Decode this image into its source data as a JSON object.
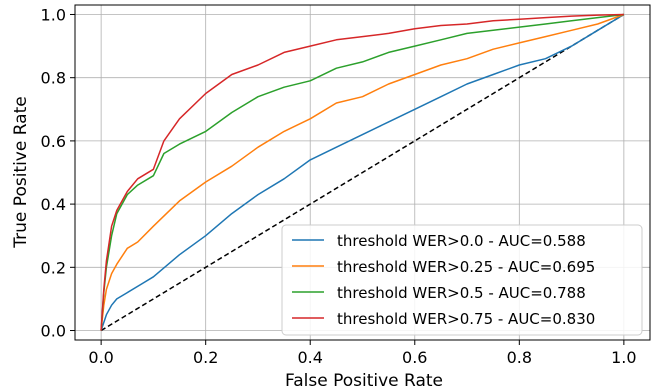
{
  "chart_data": {
    "type": "line",
    "xlabel": "False Positive Rate",
    "ylabel": "True Positive Rate",
    "xlim": [
      -0.05,
      1.05
    ],
    "ylim": [
      -0.03,
      1.03
    ],
    "xticks": [
      "0.0",
      "0.2",
      "0.4",
      "0.6",
      "0.8",
      "1.0"
    ],
    "yticks": [
      "0.0",
      "0.2",
      "0.4",
      "0.6",
      "0.8",
      "1.0"
    ],
    "grid": true,
    "legend_position": "lower-right",
    "reference_line": {
      "x": [
        0,
        1
      ],
      "y": [
        0,
        1
      ],
      "style": "dashed",
      "color": "#000000"
    },
    "series": [
      {
        "name": "threshold WER>0.0 - AUC=0.588",
        "color": "#1f77b4",
        "x": [
          0,
          0.01,
          0.02,
          0.03,
          0.05,
          0.08,
          0.1,
          0.15,
          0.2,
          0.25,
          0.3,
          0.35,
          0.4,
          0.45,
          0.5,
          0.55,
          0.6,
          0.65,
          0.7,
          0.75,
          0.8,
          0.85,
          0.9,
          0.95,
          1.0
        ],
        "y": [
          0,
          0.05,
          0.08,
          0.1,
          0.12,
          0.15,
          0.17,
          0.24,
          0.3,
          0.37,
          0.43,
          0.48,
          0.54,
          0.58,
          0.62,
          0.66,
          0.7,
          0.74,
          0.78,
          0.81,
          0.84,
          0.86,
          0.9,
          0.95,
          1.0
        ]
      },
      {
        "name": "threshold WER>0.25 - AUC=0.695",
        "color": "#ff7f0e",
        "x": [
          0,
          0.005,
          0.01,
          0.02,
          0.03,
          0.05,
          0.07,
          0.1,
          0.15,
          0.2,
          0.25,
          0.3,
          0.35,
          0.4,
          0.45,
          0.5,
          0.55,
          0.6,
          0.65,
          0.7,
          0.75,
          0.8,
          0.85,
          0.9,
          0.95,
          1.0
        ],
        "y": [
          0,
          0.08,
          0.13,
          0.18,
          0.21,
          0.26,
          0.28,
          0.33,
          0.41,
          0.47,
          0.52,
          0.58,
          0.63,
          0.67,
          0.72,
          0.74,
          0.78,
          0.81,
          0.84,
          0.86,
          0.89,
          0.91,
          0.93,
          0.95,
          0.97,
          1.0
        ]
      },
      {
        "name": "threshold WER>0.5 - AUC=0.788",
        "color": "#2ca02c",
        "x": [
          0,
          0.005,
          0.01,
          0.02,
          0.03,
          0.05,
          0.07,
          0.1,
          0.12,
          0.15,
          0.2,
          0.25,
          0.3,
          0.35,
          0.4,
          0.45,
          0.5,
          0.55,
          0.6,
          0.65,
          0.7,
          0.75,
          0.8,
          0.85,
          0.9,
          0.95,
          1.0
        ],
        "y": [
          0,
          0.12,
          0.2,
          0.3,
          0.37,
          0.43,
          0.46,
          0.49,
          0.56,
          0.59,
          0.63,
          0.69,
          0.74,
          0.77,
          0.79,
          0.83,
          0.85,
          0.88,
          0.9,
          0.92,
          0.94,
          0.95,
          0.96,
          0.97,
          0.98,
          0.99,
          1.0
        ]
      },
      {
        "name": "threshold WER>0.75 - AUC=0.830",
        "color": "#d62728",
        "x": [
          0,
          0.005,
          0.01,
          0.02,
          0.03,
          0.05,
          0.07,
          0.1,
          0.12,
          0.15,
          0.2,
          0.25,
          0.3,
          0.35,
          0.4,
          0.45,
          0.5,
          0.55,
          0.6,
          0.65,
          0.7,
          0.75,
          0.8,
          0.85,
          0.9,
          0.95,
          1.0
        ],
        "y": [
          0,
          0.13,
          0.22,
          0.33,
          0.38,
          0.44,
          0.48,
          0.51,
          0.6,
          0.67,
          0.75,
          0.81,
          0.84,
          0.88,
          0.9,
          0.92,
          0.93,
          0.94,
          0.955,
          0.965,
          0.97,
          0.98,
          0.985,
          0.99,
          0.995,
          0.998,
          1.0
        ]
      }
    ]
  }
}
